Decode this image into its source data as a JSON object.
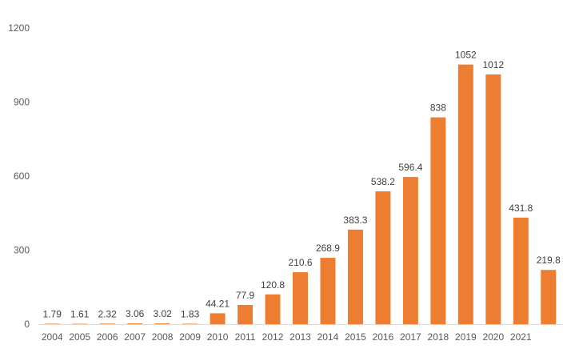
{
  "chart_data": {
    "type": "bar",
    "title": "",
    "xlabel": "",
    "ylabel": "",
    "categories": [
      "2004",
      "2005",
      "2006",
      "2007",
      "2008",
      "2009",
      "2010",
      "2011",
      "2012",
      "2013",
      "2014",
      "2015",
      "2016",
      "2017",
      "2018",
      "2019",
      "2020",
      "2021",
      ""
    ],
    "values": [
      1.79,
      1.61,
      2.32,
      3.06,
      3.02,
      1.83,
      44.21,
      77.9,
      120.8,
      210.6,
      268.9,
      383.3,
      538.2,
      596.4,
      838,
      1052,
      1012,
      431.8,
      219.8
    ],
    "value_labels": [
      "1.79",
      "1.61",
      "2.32",
      "3.06",
      "3.02",
      "1.83",
      "44.21",
      "77.9",
      "120.8",
      "210.6",
      "268.9",
      "383.3",
      "538.2",
      "596.4",
      "838",
      "1052",
      "1012",
      "431.8",
      "219.8"
    ],
    "ylim": [
      0,
      1200
    ],
    "yticks": [
      0,
      300,
      600,
      900,
      1200
    ],
    "grid": false,
    "legend": "none",
    "bar_color": "#ED7D31"
  }
}
